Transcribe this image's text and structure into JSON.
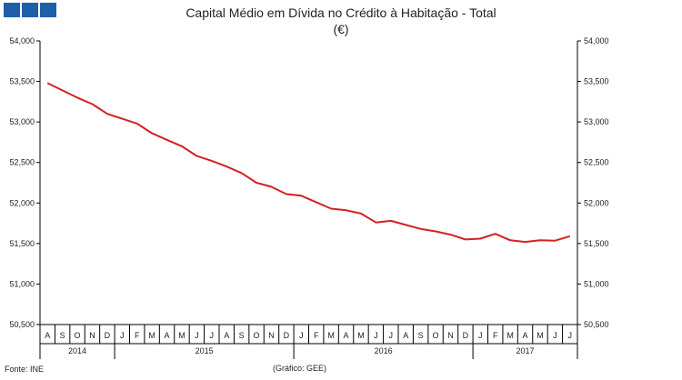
{
  "header": {
    "title": "Capital Médio em Dívida no Crédito à Habitação - Total",
    "subtitle": "(€)"
  },
  "footer": {
    "source": "Fonte: INE",
    "credit": "(Gráfico: GEE)"
  },
  "colors": {
    "line": "#d42020",
    "logo": "#1f5ea8",
    "axis": "#000000"
  },
  "chart_data": {
    "type": "line",
    "title": "Capital Médio em Dívida no Crédito à Habitação - Total",
    "subtitle": "(€)",
    "ylim": [
      50500,
      54000
    ],
    "yticks": [
      50500,
      51000,
      51500,
      52000,
      52500,
      53000,
      53500,
      54000
    ],
    "ytick_labels": [
      "50,500",
      "51,000",
      "51,500",
      "52,000",
      "52,500",
      "53,000",
      "53,500",
      "54,000"
    ],
    "month_labels": [
      "A",
      "S",
      "O",
      "N",
      "D",
      "J",
      "F",
      "M",
      "A",
      "M",
      "J",
      "J",
      "A",
      "S",
      "O",
      "N",
      "D",
      "J",
      "F",
      "M",
      "A",
      "M",
      "J",
      "J",
      "A",
      "S",
      "O",
      "N",
      "D",
      "J",
      "F",
      "M",
      "A",
      "M",
      "J",
      "J"
    ],
    "years": [
      {
        "label": "2014",
        "start": 0,
        "end": 4
      },
      {
        "label": "2015",
        "start": 5,
        "end": 16
      },
      {
        "label": "2016",
        "start": 17,
        "end": 28
      },
      {
        "label": "2017",
        "start": 29,
        "end": 35
      }
    ],
    "legend": "none",
    "grid": false,
    "series": [
      {
        "values": [
          53480,
          53390,
          53300,
          53220,
          53100,
          53040,
          52980,
          52860,
          52780,
          52700,
          52580,
          52520,
          52450,
          52370,
          52250,
          52200,
          52110,
          52090,
          52010,
          51930,
          51910,
          51870,
          51760,
          51780,
          51730,
          51680,
          51650,
          51610,
          51550,
          51560,
          51620,
          51540,
          51520,
          51540,
          51535,
          51590
        ]
      }
    ]
  }
}
